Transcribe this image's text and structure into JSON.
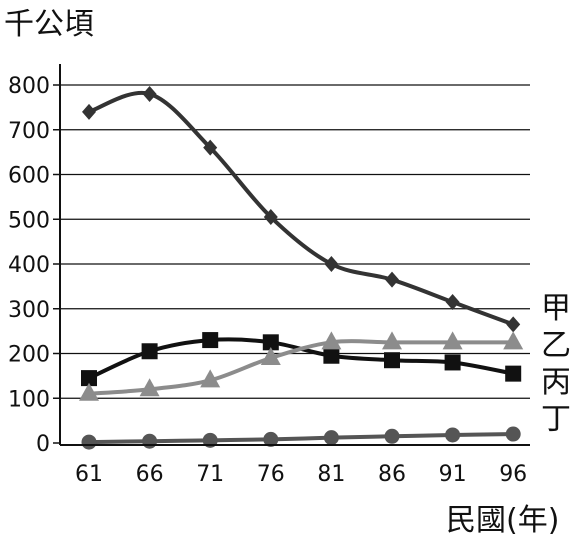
{
  "chart_data": {
    "type": "line",
    "ylabel": "千公頃",
    "xlabel": "民國(年)",
    "x": [
      "61",
      "66",
      "71",
      "76",
      "81",
      "86",
      "91",
      "96"
    ],
    "ylim": [
      0,
      800
    ],
    "yticks": [
      "0",
      "100",
      "200",
      "300",
      "400",
      "500",
      "600",
      "700",
      "800"
    ],
    "grid": "horizontal",
    "series": [
      {
        "name": "甲",
        "marker": "diamond",
        "color": "#333333",
        "values": [
          740,
          780,
          660,
          505,
          400,
          365,
          315,
          265
        ]
      },
      {
        "name": "乙",
        "marker": "square",
        "color": "#111111",
        "values": [
          145,
          205,
          230,
          225,
          195,
          185,
          180,
          155
        ]
      },
      {
        "name": "丙",
        "marker": "triangle",
        "color": "#8c8c8c",
        "values": [
          110,
          120,
          140,
          190,
          225,
          225,
          225,
          225
        ]
      },
      {
        "name": "丁",
        "marker": "circle",
        "color": "#555555",
        "values": [
          2,
          4,
          6,
          8,
          12,
          15,
          18,
          20
        ]
      }
    ]
  }
}
